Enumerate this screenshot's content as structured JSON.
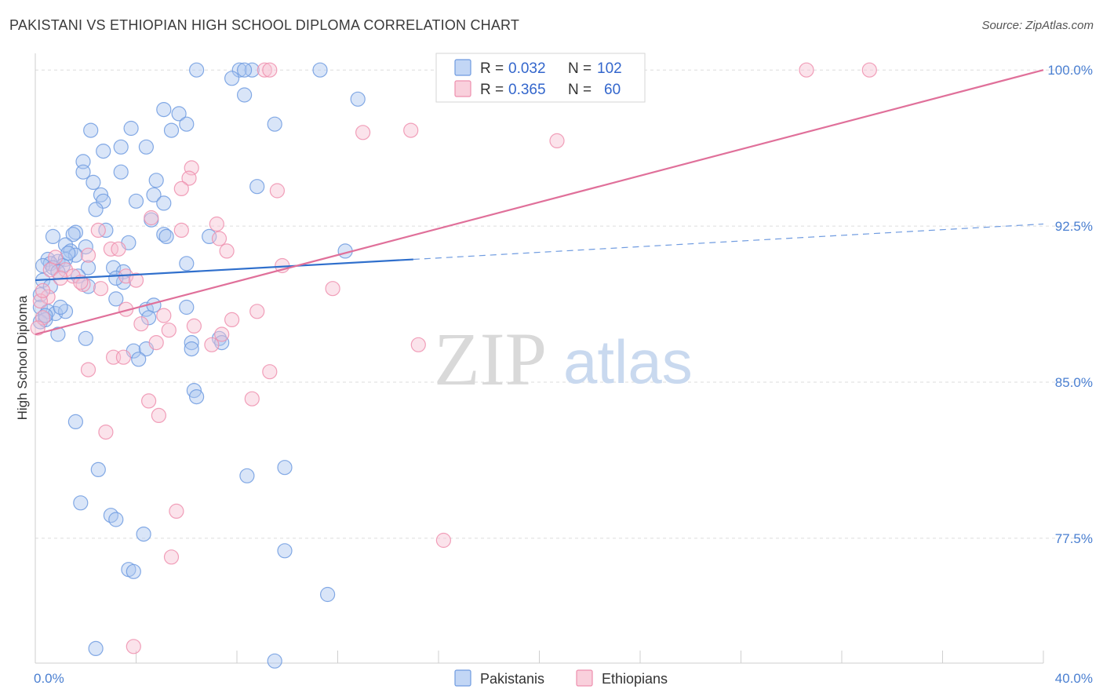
{
  "header": {
    "title": "PAKISTANI VS ETHIOPIAN HIGH SCHOOL DIPLOMA CORRELATION CHART",
    "source": "Source: ZipAtlas.com"
  },
  "watermark": {
    "zip": "ZIP",
    "atlas": "atlas"
  },
  "legend_top": {
    "rows": [
      {
        "r_label": "R = ",
        "r_value": "0.032",
        "n_label": "N = ",
        "n_value": "102",
        "color": "#8fb4ec"
      },
      {
        "r_label": "R = ",
        "r_value": "0.365",
        "n_label": "N = ",
        "n_value": "60",
        "color": "#f4a9c0"
      }
    ]
  },
  "legend_bottom": [
    {
      "label": "Pakistanis",
      "color": "#8fb4ec"
    },
    {
      "label": "Ethiopians",
      "color": "#f4a9c0"
    }
  ],
  "chart_data": {
    "type": "scatter",
    "title": "PAKISTANI VS ETHIOPIAN HIGH SCHOOL DIPLOMA CORRELATION CHART",
    "xlabel": "",
    "ylabel": "High School Diploma",
    "xlim": [
      0,
      40
    ],
    "ylim": [
      71.5,
      100.8
    ],
    "x_tick_labels": [
      "0.0%",
      "40.0%"
    ],
    "y_ticks": [
      77.5,
      85.0,
      92.5,
      100.0
    ],
    "y_tick_labels": [
      "77.5%",
      "85.0%",
      "92.5%",
      "100.0%"
    ],
    "grid": "horizontal dashed",
    "legend_placement": "top-center and bottom-center",
    "series": [
      {
        "name": "Pakistanis",
        "color": "#6f9be0",
        "fill": "#aac6f0",
        "r": 0.032,
        "n": 102,
        "trend": {
          "x": [
            0,
            15
          ],
          "y": [
            89.9,
            90.9
          ],
          "dashed_to": [
            40,
            92.6
          ]
        },
        "points": [
          [
            6.4,
            100
          ],
          [
            8.1,
            100
          ],
          [
            8.6,
            100
          ],
          [
            8.3,
            100
          ],
          [
            11.3,
            100
          ],
          [
            7.8,
            99.6
          ],
          [
            8.3,
            98.8
          ],
          [
            12.8,
            98.6
          ],
          [
            5.1,
            98.1
          ],
          [
            5.7,
            97.9
          ],
          [
            2.2,
            97.1
          ],
          [
            3.8,
            97.2
          ],
          [
            5.4,
            97.1
          ],
          [
            6.0,
            97.4
          ],
          [
            9.5,
            97.4
          ],
          [
            4.4,
            96.3
          ],
          [
            2.7,
            96.1
          ],
          [
            3.4,
            96.3
          ],
          [
            1.9,
            95.6
          ],
          [
            1.9,
            95.1
          ],
          [
            3.4,
            95.1
          ],
          [
            2.3,
            94.6
          ],
          [
            4.8,
            94.7
          ],
          [
            8.8,
            94.4
          ],
          [
            2.6,
            94.0
          ],
          [
            2.7,
            93.7
          ],
          [
            4.0,
            93.7
          ],
          [
            4.7,
            94.0
          ],
          [
            5.1,
            93.6
          ],
          [
            2.4,
            93.3
          ],
          [
            4.6,
            92.8
          ],
          [
            2.8,
            92.3
          ],
          [
            1.6,
            92.2
          ],
          [
            1.5,
            92.1
          ],
          [
            0.7,
            92.0
          ],
          [
            5.1,
            92.1
          ],
          [
            5.2,
            92.0
          ],
          [
            6.9,
            92.0
          ],
          [
            3.7,
            91.7
          ],
          [
            2.0,
            91.5
          ],
          [
            1.2,
            91.6
          ],
          [
            1.4,
            91.3
          ],
          [
            1.6,
            91.1
          ],
          [
            0.5,
            90.9
          ],
          [
            0.9,
            90.8
          ],
          [
            1.2,
            90.9
          ],
          [
            0.6,
            90.7
          ],
          [
            1.1,
            90.6
          ],
          [
            0.3,
            90.6
          ],
          [
            0.7,
            90.5
          ],
          [
            2.1,
            90.5
          ],
          [
            3.1,
            90.5
          ],
          [
            3.5,
            90.3
          ],
          [
            6.0,
            90.7
          ],
          [
            1.7,
            90.1
          ],
          [
            0.3,
            89.9
          ],
          [
            0.6,
            89.6
          ],
          [
            2.1,
            89.6
          ],
          [
            3.5,
            89.8
          ],
          [
            0.2,
            89.2
          ],
          [
            3.2,
            89.0
          ],
          [
            0.2,
            88.6
          ],
          [
            0.5,
            88.4
          ],
          [
            0.8,
            88.3
          ],
          [
            1.2,
            88.4
          ],
          [
            4.4,
            88.5
          ],
          [
            4.7,
            88.7
          ],
          [
            6.0,
            88.6
          ],
          [
            0.2,
            87.9
          ],
          [
            0.4,
            88.0
          ],
          [
            4.5,
            88.1
          ],
          [
            0.9,
            87.3
          ],
          [
            2.0,
            87.1
          ],
          [
            6.2,
            86.9
          ],
          [
            6.2,
            86.6
          ],
          [
            7.3,
            87.1
          ],
          [
            7.4,
            86.9
          ],
          [
            3.9,
            86.5
          ],
          [
            4.4,
            86.6
          ],
          [
            4.1,
            86.1
          ],
          [
            6.3,
            84.6
          ],
          [
            6.4,
            84.3
          ],
          [
            1.6,
            83.1
          ],
          [
            12.3,
            91.3
          ],
          [
            2.5,
            80.8
          ],
          [
            8.4,
            80.5
          ],
          [
            9.9,
            80.9
          ],
          [
            1.8,
            79.2
          ],
          [
            3.0,
            78.6
          ],
          [
            3.2,
            78.4
          ],
          [
            4.3,
            77.7
          ],
          [
            9.9,
            76.9
          ],
          [
            3.7,
            76.0
          ],
          [
            3.9,
            75.9
          ],
          [
            11.6,
            74.8
          ],
          [
            2.4,
            72.2
          ],
          [
            9.5,
            71.6
          ],
          [
            0.4,
            88.2
          ],
          [
            1.0,
            88.6
          ],
          [
            3.2,
            90.0
          ],
          [
            1.3,
            91.2
          ],
          [
            0.9,
            90.3
          ]
        ]
      },
      {
        "name": "Ethiopians",
        "color": "#ee8fae",
        "fill": "#f7c2d3",
        "r": 0.365,
        "n": 60,
        "trend": {
          "x": [
            0,
            40
          ],
          "y": [
            87.3,
            100.0
          ]
        },
        "points": [
          [
            9.1,
            100
          ],
          [
            30.6,
            100
          ],
          [
            33.1,
            100
          ],
          [
            9.3,
            100
          ],
          [
            13.0,
            97.0
          ],
          [
            14.9,
            97.1
          ],
          [
            20.7,
            96.6
          ],
          [
            6.2,
            95.3
          ],
          [
            6.1,
            94.8
          ],
          [
            5.8,
            94.3
          ],
          [
            9.6,
            94.2
          ],
          [
            7.2,
            92.6
          ],
          [
            4.6,
            92.9
          ],
          [
            2.5,
            92.3
          ],
          [
            5.8,
            92.3
          ],
          [
            3.0,
            91.4
          ],
          [
            3.3,
            91.4
          ],
          [
            7.6,
            91.3
          ],
          [
            2.1,
            91.1
          ],
          [
            0.8,
            91.0
          ],
          [
            9.8,
            90.6
          ],
          [
            1.2,
            90.4
          ],
          [
            0.6,
            90.4
          ],
          [
            1.5,
            90.1
          ],
          [
            3.6,
            90.1
          ],
          [
            4.0,
            89.9
          ],
          [
            1.9,
            89.7
          ],
          [
            2.6,
            89.5
          ],
          [
            1.8,
            89.8
          ],
          [
            11.8,
            89.5
          ],
          [
            0.5,
            89.1
          ],
          [
            0.2,
            88.9
          ],
          [
            3.6,
            88.5
          ],
          [
            5.1,
            88.2
          ],
          [
            8.8,
            88.4
          ],
          [
            6.3,
            87.7
          ],
          [
            7.8,
            88.0
          ],
          [
            0.3,
            88.1
          ],
          [
            0.1,
            87.6
          ],
          [
            4.2,
            87.8
          ],
          [
            5.3,
            87.5
          ],
          [
            7.4,
            87.3
          ],
          [
            4.8,
            86.9
          ],
          [
            7.0,
            86.8
          ],
          [
            15.2,
            86.8
          ],
          [
            3.1,
            86.2
          ],
          [
            3.5,
            86.2
          ],
          [
            2.1,
            85.6
          ],
          [
            9.3,
            85.5
          ],
          [
            4.5,
            84.1
          ],
          [
            8.6,
            84.2
          ],
          [
            4.9,
            83.4
          ],
          [
            2.8,
            82.6
          ],
          [
            5.6,
            78.8
          ],
          [
            16.2,
            77.4
          ],
          [
            5.4,
            76.6
          ],
          [
            3.9,
            72.3
          ],
          [
            7.3,
            91.9
          ],
          [
            1.0,
            90.0
          ],
          [
            0.3,
            89.4
          ]
        ]
      }
    ]
  }
}
